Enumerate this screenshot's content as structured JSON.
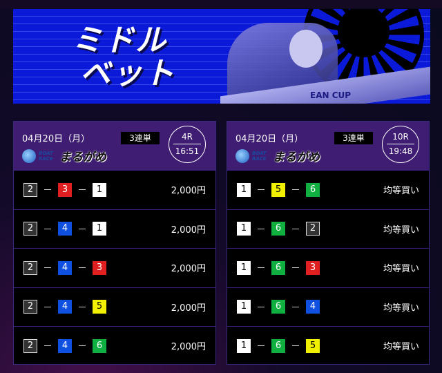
{
  "banner": {
    "title_line1": "ミドル",
    "title_line2": "ベット",
    "boat_text": "EAN CUP"
  },
  "colors": {
    "boat1": "#ffffff",
    "boat2": "#333333",
    "boat3": "#e02020",
    "boat4": "#1050e0",
    "boat5": "#f0f000",
    "boat6": "#10b040",
    "header": "#3e1d72"
  },
  "cards": [
    {
      "date": "04月20日（月）",
      "bet_type": "3連単",
      "logo_brand": "BOAT RACE",
      "venue": "まるがめ",
      "race": "4R",
      "time": "16:51",
      "rows": [
        {
          "combo": [
            "2",
            "3",
            "1"
          ],
          "amount": "2,000円"
        },
        {
          "combo": [
            "2",
            "4",
            "1"
          ],
          "amount": "2,000円"
        },
        {
          "combo": [
            "2",
            "4",
            "3"
          ],
          "amount": "2,000円"
        },
        {
          "combo": [
            "2",
            "4",
            "5"
          ],
          "amount": "2,000円"
        },
        {
          "combo": [
            "2",
            "4",
            "6"
          ],
          "amount": "2,000円"
        }
      ]
    },
    {
      "date": "04月20日（月）",
      "bet_type": "3連単",
      "logo_brand": "BOAT RACE",
      "venue": "まるがめ",
      "race": "10R",
      "time": "19:48",
      "rows": [
        {
          "combo": [
            "1",
            "5",
            "6"
          ],
          "amount": "均等買い"
        },
        {
          "combo": [
            "1",
            "6",
            "2"
          ],
          "amount": "均等買い"
        },
        {
          "combo": [
            "1",
            "6",
            "3"
          ],
          "amount": "均等買い"
        },
        {
          "combo": [
            "1",
            "6",
            "4"
          ],
          "amount": "均等買い"
        },
        {
          "combo": [
            "1",
            "6",
            "5"
          ],
          "amount": "均等買い"
        }
      ]
    }
  ]
}
